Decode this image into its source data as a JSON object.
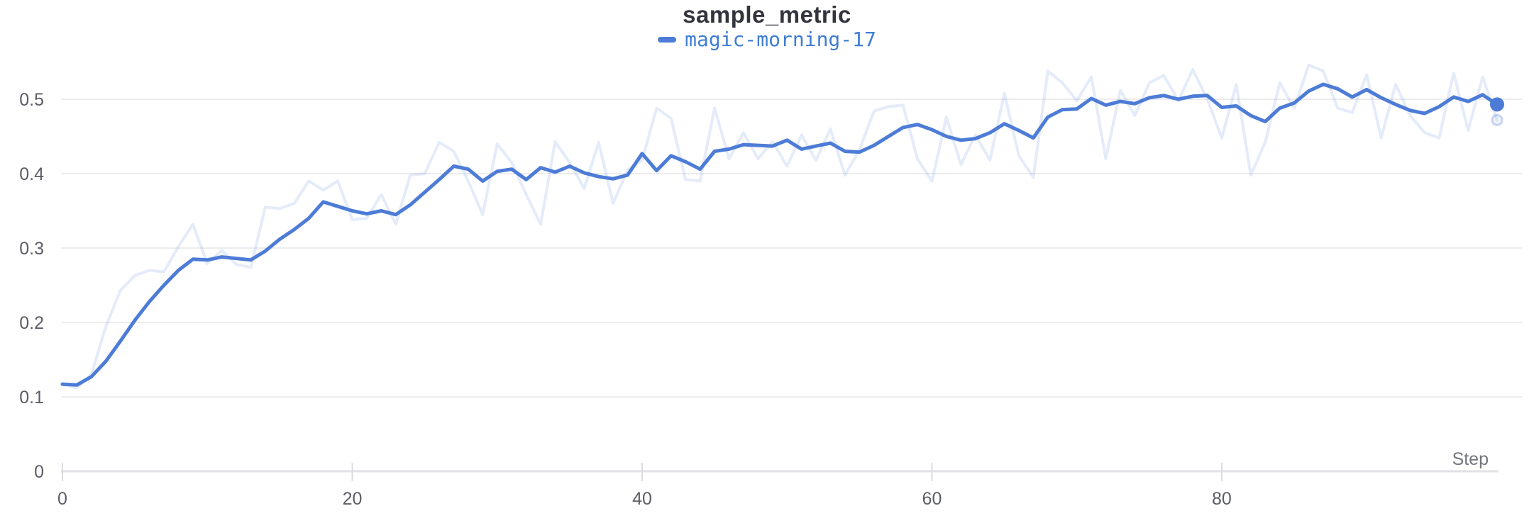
{
  "header": {
    "title": "sample_metric"
  },
  "legend": {
    "label": "magic-morning-17"
  },
  "colors": {
    "accent": "#4d7cd7",
    "legend_text": "#3f7dd4",
    "title_text": "#33343d",
    "tick_label": "#5c5d66",
    "axis_label": "#73747e",
    "gridline": "#ececef",
    "axis_line": "#e2e2e6",
    "tick_mark": "#dcdce1",
    "background": "#ffffff"
  },
  "chart_data": {
    "type": "line",
    "title": "sample_metric",
    "xlabel": "Step",
    "ylabel": "",
    "legend_position": "top-center",
    "grid": "horizontal",
    "xlim": [
      0,
      99
    ],
    "ylim": [
      0,
      0.55
    ],
    "x_ticks": [
      0,
      20,
      40,
      60,
      80
    ],
    "y_ticks": [
      0,
      0.1,
      0.2,
      0.3,
      0.4,
      0.5
    ],
    "y_tick_labels": [
      "0",
      "0.1",
      "0.2",
      "0.3",
      "0.4",
      "0.5"
    ],
    "x_start": 0,
    "x_step_increment": 1,
    "n_points": 100,
    "series": [
      {
        "name": "magic-morning-17 (raw)",
        "role": "raw-unsmoothed",
        "opacity": 0.15,
        "end_marker": "ring",
        "values": [
          0.117,
          0.112,
          0.13,
          0.195,
          0.243,
          0.263,
          0.27,
          0.268,
          0.302,
          0.332,
          0.279,
          0.297,
          0.278,
          0.274,
          0.355,
          0.353,
          0.36,
          0.39,
          0.378,
          0.39,
          0.338,
          0.34,
          0.372,
          0.332,
          0.398,
          0.4,
          0.442,
          0.43,
          0.39,
          0.345,
          0.44,
          0.415,
          0.372,
          0.332,
          0.443,
          0.415,
          0.38,
          0.442,
          0.36,
          0.405,
          0.418,
          0.488,
          0.474,
          0.392,
          0.39,
          0.488,
          0.42,
          0.455,
          0.42,
          0.443,
          0.41,
          0.452,
          0.418,
          0.46,
          0.398,
          0.432,
          0.484,
          0.49,
          0.492,
          0.42,
          0.39,
          0.476,
          0.412,
          0.452,
          0.418,
          0.508,
          0.424,
          0.395,
          0.538,
          0.522,
          0.498,
          0.53,
          0.42,
          0.512,
          0.478,
          0.522,
          0.532,
          0.498,
          0.54,
          0.5,
          0.448,
          0.52,
          0.398,
          0.442,
          0.522,
          0.488,
          0.546,
          0.538,
          0.488,
          0.482,
          0.533,
          0.448,
          0.52,
          0.478,
          0.455,
          0.448,
          0.535,
          0.458,
          0.53,
          0.472
        ]
      },
      {
        "name": "magic-morning-17",
        "role": "smoothed",
        "opacity": 1,
        "end_marker": "dot",
        "values": [
          0.117,
          0.116,
          0.127,
          0.148,
          0.175,
          0.203,
          0.228,
          0.25,
          0.27,
          0.285,
          0.284,
          0.288,
          0.286,
          0.284,
          0.296,
          0.312,
          0.325,
          0.34,
          0.362,
          0.356,
          0.35,
          0.346,
          0.35,
          0.345,
          0.358,
          0.375,
          0.392,
          0.41,
          0.406,
          0.39,
          0.403,
          0.406,
          0.392,
          0.408,
          0.402,
          0.41,
          0.401,
          0.396,
          0.393,
          0.398,
          0.427,
          0.404,
          0.424,
          0.416,
          0.406,
          0.43,
          0.433,
          0.439,
          0.438,
          0.437,
          0.445,
          0.433,
          0.437,
          0.441,
          0.43,
          0.429,
          0.438,
          0.45,
          0.462,
          0.466,
          0.459,
          0.45,
          0.445,
          0.447,
          0.455,
          0.467,
          0.458,
          0.448,
          0.476,
          0.486,
          0.487,
          0.501,
          0.492,
          0.497,
          0.494,
          0.502,
          0.505,
          0.5,
          0.504,
          0.505,
          0.489,
          0.491,
          0.478,
          0.47,
          0.488,
          0.495,
          0.511,
          0.52,
          0.514,
          0.503,
          0.513,
          0.502,
          0.493,
          0.485,
          0.481,
          0.49,
          0.503,
          0.497,
          0.506,
          0.493
        ]
      }
    ],
    "final_value_smoothed": 0.493,
    "final_value_raw": 0.472
  }
}
